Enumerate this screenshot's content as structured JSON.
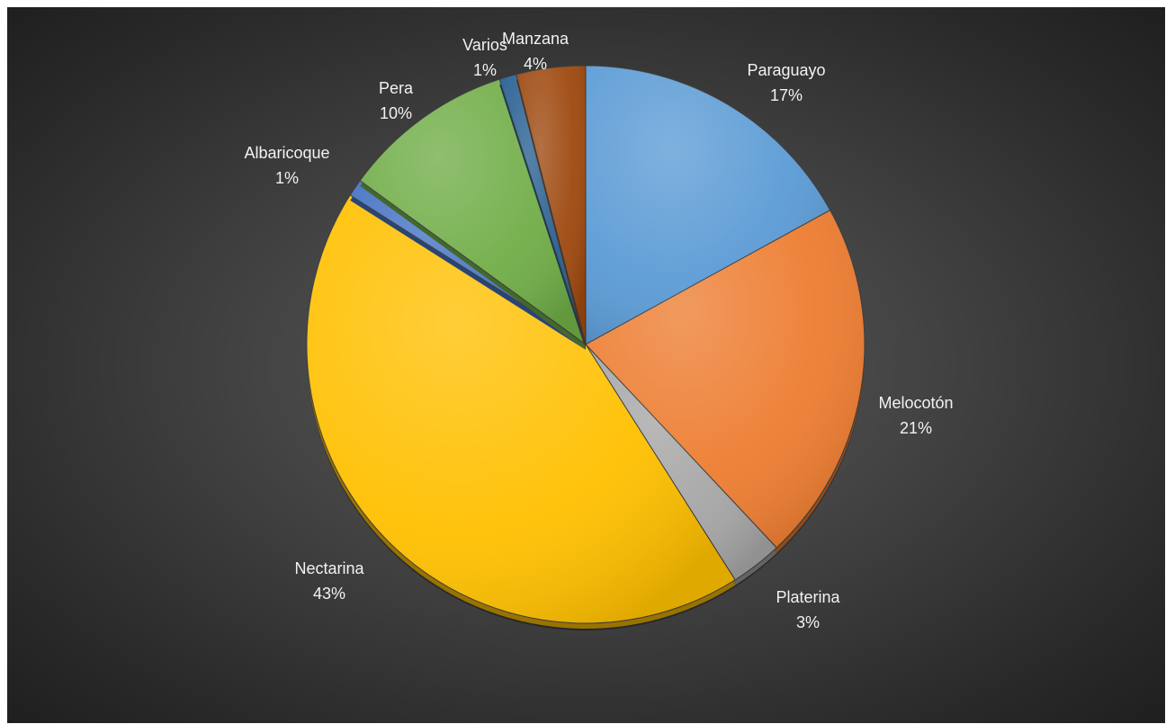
{
  "chart_data": {
    "type": "pie",
    "slices": [
      {
        "name": "Paraguayo",
        "value": 17,
        "label": "17%",
        "color": "#5b9bd5"
      },
      {
        "name": "Melocotón",
        "value": 21,
        "label": "21%",
        "color": "#ed7d31"
      },
      {
        "name": "Platerina",
        "value": 3,
        "label": "3%",
        "color": "#a5a5a5"
      },
      {
        "name": "Nectarina",
        "value": 43,
        "label": "43%",
        "color": "#ffc000"
      },
      {
        "name": "Albaricoque",
        "value": 1,
        "label": "1%",
        "color": "#4472c4"
      },
      {
        "name": "Pera",
        "value": 10,
        "label": "10%",
        "color": "#70ad47"
      },
      {
        "name": "Varios",
        "value": 1,
        "label": "1%",
        "color": "#255e91"
      },
      {
        "name": "Manzana",
        "value": 4,
        "label": "4%",
        "color": "#9e480e"
      }
    ],
    "start_angle_deg": 0,
    "direction": "clockwise",
    "data_labels": "outside, category name and percentage",
    "legend": "none"
  }
}
